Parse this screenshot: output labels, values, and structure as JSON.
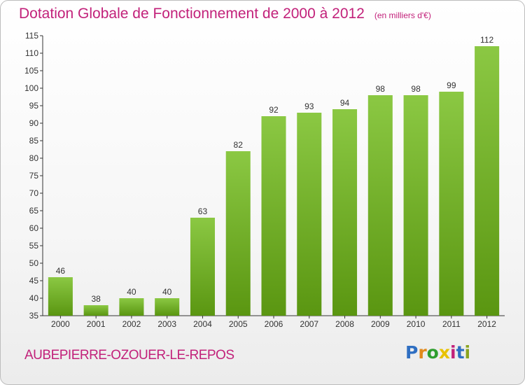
{
  "header": {
    "title": "Dotation Globale de Fonctionnement de 2000 à 2012",
    "unit": "(en milliers d'€)"
  },
  "footer": {
    "place_name": "AUBEPIERRE-OZOUER-LE-REPOS",
    "logo_text": "Proxiti",
    "logo_colors": [
      "#2f6fc2",
      "#e28a1c",
      "#2f9e2f",
      "#e8c200",
      "#c2217a",
      "#2f6fc2",
      "#8aa41f"
    ]
  },
  "colors": {
    "title": "#c2217a",
    "bar_top": "#8bc843",
    "bar_bottom": "#5a9611",
    "axis": "#333333"
  },
  "chart_data": {
    "type": "bar",
    "title": "Dotation Globale de Fonctionnement de 2000 à 2012",
    "xlabel": "",
    "ylabel": "",
    "categories": [
      "2000",
      "2001",
      "2002",
      "2003",
      "2004",
      "2005",
      "2006",
      "2007",
      "2008",
      "2009",
      "2010",
      "2011",
      "2012"
    ],
    "values": [
      46,
      38,
      40,
      40,
      63,
      82,
      92,
      93,
      94,
      98,
      98,
      99,
      112
    ],
    "ylim": [
      35,
      115
    ],
    "yticks": [
      35,
      40,
      45,
      50,
      55,
      60,
      65,
      70,
      75,
      80,
      85,
      90,
      95,
      100,
      105,
      110,
      115
    ],
    "grid": false,
    "legend": "none"
  }
}
